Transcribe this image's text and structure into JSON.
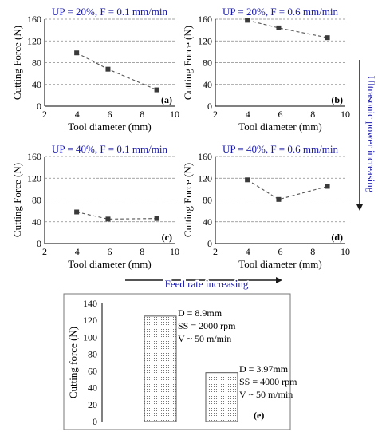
{
  "figure": {
    "side_annotation": "Ultrasonic power increasing",
    "bottom_annotation": "Feed rate increasing",
    "annotation_color": "#1a1aaa"
  },
  "chart_data": [
    {
      "type": "line",
      "panel": "(a)",
      "title": "UP = 20%, F = 0.1 mm/min",
      "xlabel": "Tool diameter (mm)",
      "ylabel": "Cutting Force (N)",
      "xlim": [
        2,
        10
      ],
      "ylim": [
        0,
        160
      ],
      "xticks": [
        2,
        4,
        6,
        8,
        10
      ],
      "yticks": [
        0,
        40,
        80,
        120,
        160
      ],
      "grid": "horizontal dashed",
      "x": [
        3.97,
        5.9,
        8.9
      ],
      "y": [
        98,
        68,
        30
      ]
    },
    {
      "type": "line",
      "panel": "(b)",
      "title": "UP = 20%, F = 0.6 mm/min",
      "xlabel": "Tool diameter (mm)",
      "ylabel": "Cutting Force (N)",
      "xlim": [
        2,
        10
      ],
      "ylim": [
        0,
        160
      ],
      "xticks": [
        2,
        4,
        6,
        8,
        10
      ],
      "yticks": [
        0,
        40,
        80,
        120,
        160
      ],
      "grid": "horizontal dashed",
      "x": [
        3.97,
        5.9,
        8.9
      ],
      "y": [
        158,
        144,
        126
      ]
    },
    {
      "type": "line",
      "panel": "(c)",
      "title": "UP = 40%, F = 0.1 mm/min",
      "xlabel": "Tool diameter (mm)",
      "ylabel": "Cutting Force (N)",
      "xlim": [
        2,
        10
      ],
      "ylim": [
        0,
        160
      ],
      "xticks": [
        2,
        4,
        6,
        8,
        10
      ],
      "yticks": [
        0,
        40,
        80,
        120,
        160
      ],
      "grid": "horizontal dashed",
      "x": [
        3.97,
        5.9,
        8.9
      ],
      "y": [
        58,
        45,
        46
      ]
    },
    {
      "type": "line",
      "panel": "(d)",
      "title": "UP = 40%, F = 0.6 mm/min",
      "xlabel": "Tool diameter (mm)",
      "ylabel": "Cutting Force (N)",
      "xlim": [
        2,
        10
      ],
      "ylim": [
        0,
        160
      ],
      "xticks": [
        2,
        4,
        6,
        8,
        10
      ],
      "yticks": [
        0,
        40,
        80,
        120,
        160
      ],
      "grid": "horizontal dashed",
      "x": [
        3.97,
        5.9,
        8.9
      ],
      "y": [
        117,
        81,
        105
      ]
    },
    {
      "type": "bar",
      "panel": "(e)",
      "title": "",
      "xlabel": "",
      "ylabel": "Cutting force (N)",
      "ylim": [
        0,
        140
      ],
      "yticks": [
        0,
        20,
        40,
        60,
        80,
        100,
        120,
        140
      ],
      "grid": "none",
      "values": [
        125,
        58
      ],
      "labels": [
        [
          "D = 8.9mm",
          "SS = 2000 rpm",
          "V ~ 50 m/min"
        ],
        [
          "D = 3.97mm",
          "SS = 4000 rpm",
          "V ~ 50 m/min"
        ]
      ],
      "fill": "dotted"
    }
  ]
}
